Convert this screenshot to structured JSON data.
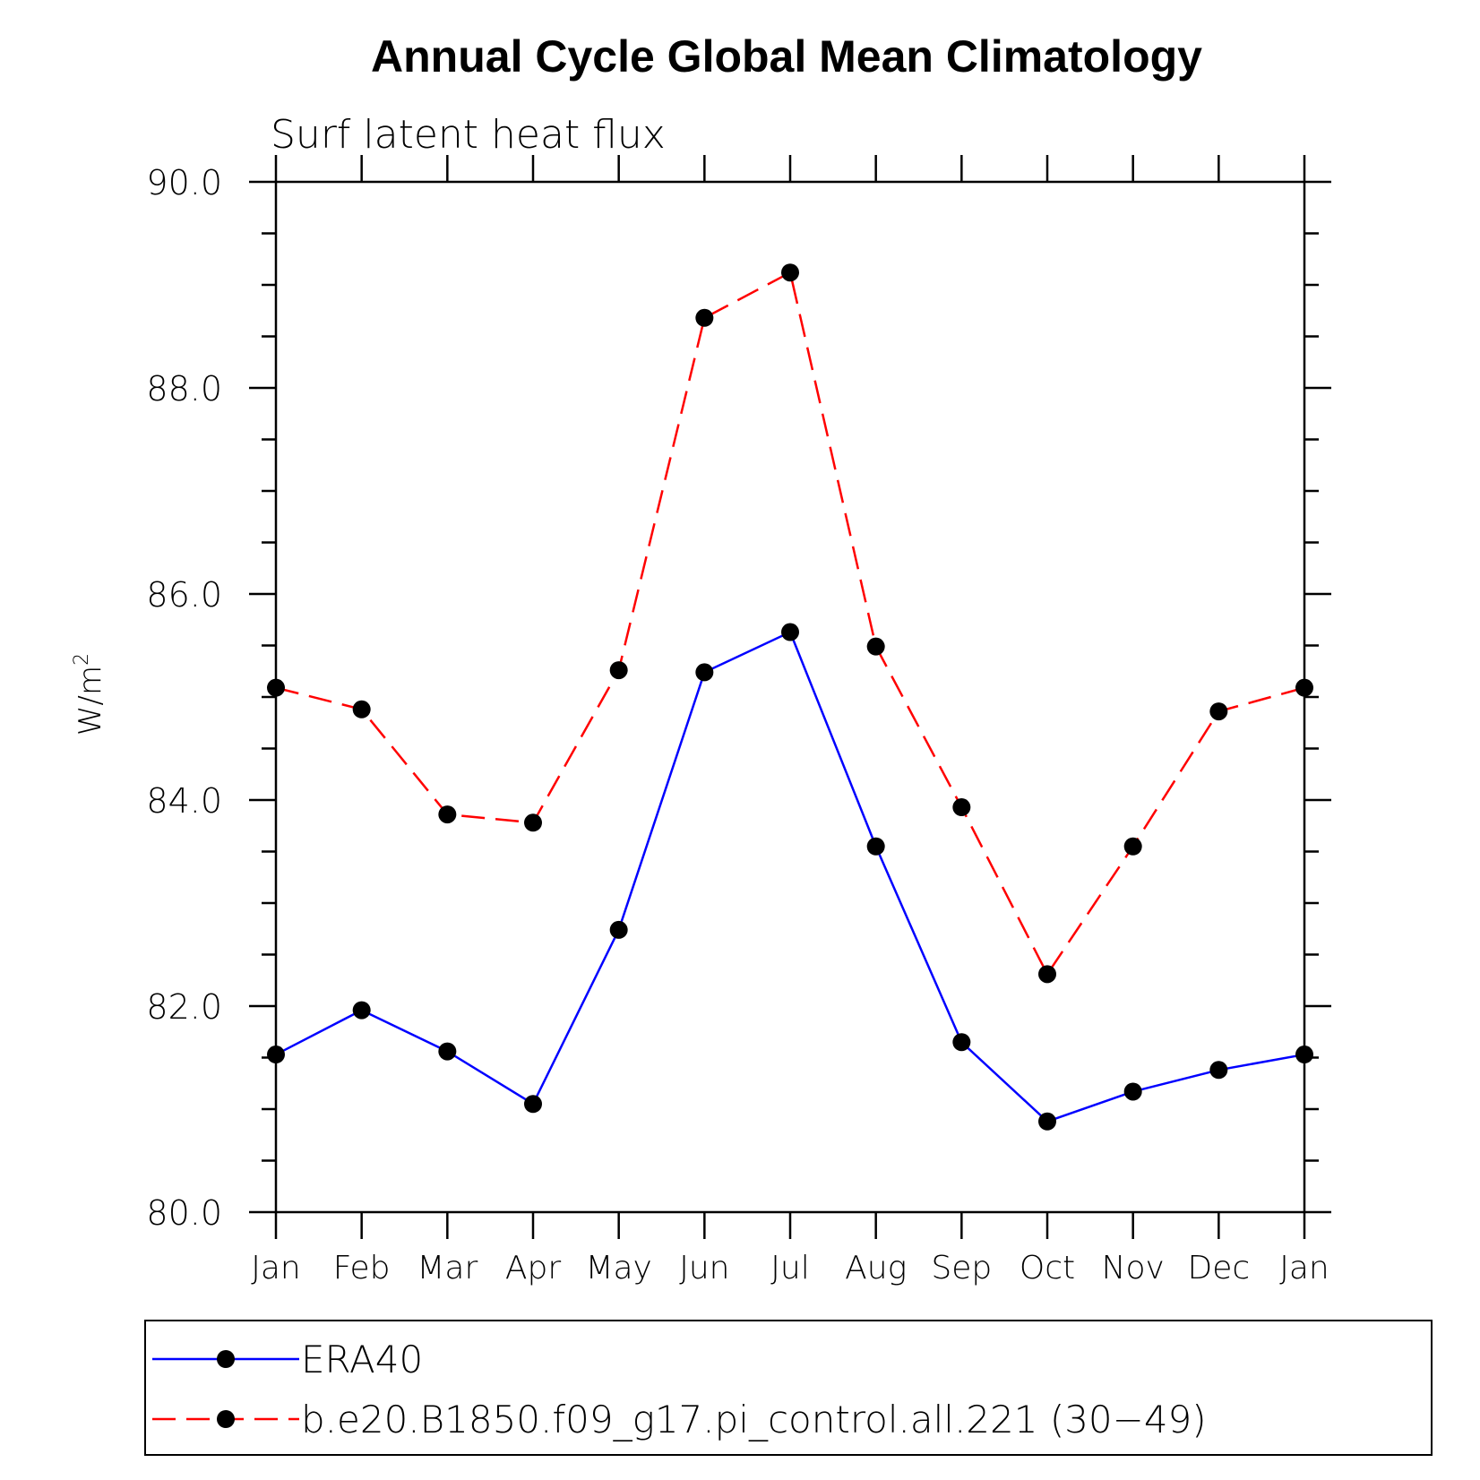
{
  "chart_data": {
    "type": "line",
    "title": "Annual Cycle Global Mean Climatology",
    "subtitle": "Surf latent heat flux",
    "xlabel": "",
    "ylabel": "W/m",
    "ylabel_superscript": "2",
    "ylim": [
      80.0,
      90.0
    ],
    "yticks": [
      "80.0",
      "82.0",
      "84.0",
      "86.0",
      "88.0",
      "90.0"
    ],
    "categories": [
      "Jan",
      "Feb",
      "Mar",
      "Apr",
      "May",
      "Jun",
      "Jul",
      "Aug",
      "Sep",
      "Oct",
      "Nov",
      "Dec",
      "Jan"
    ],
    "series": [
      {
        "name": "ERA40",
        "color": "#0000ff",
        "dash": "solid",
        "values": [
          81.53,
          81.96,
          81.56,
          81.05,
          82.74,
          85.24,
          85.63,
          83.55,
          81.65,
          80.88,
          81.17,
          81.38,
          81.53
        ]
      },
      {
        "name": "b.e20.B1850.f09_g17.pi_control.all.221 (30−49)",
        "color": "#ff0000",
        "dash": "dashed",
        "values": [
          85.09,
          84.88,
          83.86,
          83.78,
          85.26,
          88.68,
          89.12,
          85.49,
          83.93,
          82.31,
          83.55,
          84.86,
          85.09
        ]
      }
    ],
    "legend_position": "bottom"
  }
}
